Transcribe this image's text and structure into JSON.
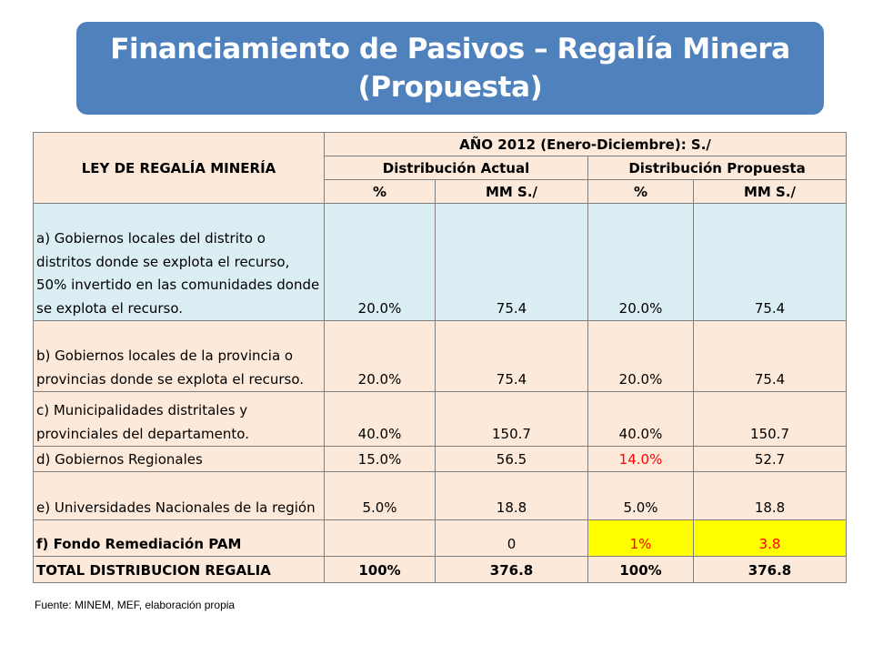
{
  "title": {
    "line1": "Financiamiento de Pasivos – Regalía Minera",
    "line2": "(Propuesta)"
  },
  "table": {
    "header": {
      "law": "LEY DE REGALÍA MINERÍA",
      "year": "AÑO 2012 (Enero-Diciembre): S./",
      "actual": "Distribución  Actual",
      "proposed": "Distribución  Propuesta",
      "pct1": "%",
      "mm1": "MM  S./",
      "pct2": "%",
      "mm2": "MM S./"
    },
    "rows": [
      {
        "label": "a) Gobiernos  locales del distrito o distritos donde se explota el recurso, 50% invertido en las comunidades donde se explota el recurso.",
        "pct_actual": "20.0%",
        "mm_actual": "75.4",
        "pct_prop": "20.0%",
        "mm_prop": "75.4"
      },
      {
        "label": "b) Gobiernos  locales de la provincia o provincias donde se explota el recurso.",
        "pct_actual": "20.0%",
        "mm_actual": "75.4",
        "pct_prop": "20.0%",
        "mm_prop": "75.4"
      },
      {
        "label": "c) Municipalidades distritales y provinciales del departamento.",
        "pct_actual": "40.0%",
        "mm_actual": "150.7",
        "pct_prop": "40.0%",
        "mm_prop": "150.7"
      },
      {
        "label": "d) Gobiernos  Regionales",
        "pct_actual": "15.0%",
        "mm_actual": "56.5",
        "pct_prop": "14.0%",
        "mm_prop": "52.7"
      },
      {
        "label": "e) Universidades Nacionales de la región",
        "pct_actual": "5.0%",
        "mm_actual": "18.8",
        "pct_prop": "5.0%",
        "mm_prop": "18.8"
      },
      {
        "label": "f) Fondo Remediación PAM",
        "pct_actual": "",
        "mm_actual": "0",
        "pct_prop": "1%",
        "mm_prop": "3.8"
      },
      {
        "label": "TOTAL DISTRIBUCION REGALIA",
        "pct_actual": "100%",
        "mm_actual": "376.8",
        "pct_prop": "100%",
        "mm_prop": "376.8"
      }
    ]
  },
  "source": "Fuente: MINEM,  MEF, elaboración propia",
  "colors": {
    "banner": "#4f81bd",
    "header_fill": "#fde9d9",
    "row_a_fill": "#daeef3",
    "highlight_yellow": "#ffff00",
    "highlight_red": "#ff0000"
  }
}
